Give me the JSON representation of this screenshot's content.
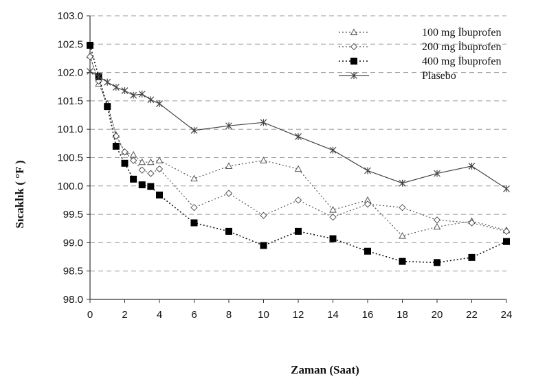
{
  "chart_data": {
    "type": "line",
    "xlabel": "Zaman (Saat)",
    "ylabel": "Sıcaklık ( °F )",
    "xlim": [
      0,
      24
    ],
    "ylim": [
      98.0,
      103.0
    ],
    "x_ticks": [
      "0",
      "2",
      "4",
      "6",
      "8",
      "10",
      "12",
      "14",
      "16",
      "18",
      "20",
      "22",
      "24"
    ],
    "y_ticks": [
      "98.0",
      "98.5",
      "99.0",
      "99.5",
      "100.0",
      "100.5",
      "101.0",
      "101.5",
      "102.0",
      "102.5",
      "103.0"
    ],
    "grid": "horizontal dashed",
    "legend_position": "top-right",
    "series": [
      {
        "name": "100 mg İbuprofen",
        "marker": "triangle",
        "line": "dotted",
        "color": "#555555",
        "x": [
          0,
          0.5,
          1,
          1.5,
          2,
          2.5,
          3,
          3.5,
          4,
          6,
          8,
          10,
          12,
          14,
          16,
          18,
          20,
          22,
          24
        ],
        "values": [
          102.3,
          101.8,
          101.45,
          100.9,
          100.6,
          100.55,
          100.42,
          100.42,
          100.45,
          100.13,
          100.35,
          100.45,
          100.3,
          99.58,
          99.75,
          99.12,
          99.28,
          99.38,
          99.22
        ]
      },
      {
        "name": "200 mg İbuprofen",
        "marker": "diamond",
        "line": "dotted",
        "color": "#555555",
        "x": [
          0,
          0.5,
          1,
          1.5,
          2,
          2.5,
          3,
          3.5,
          4,
          6,
          8,
          10,
          12,
          14,
          16,
          18,
          20,
          22,
          24
        ],
        "values": [
          102.28,
          101.85,
          101.4,
          100.88,
          100.6,
          100.45,
          100.28,
          100.22,
          100.3,
          99.62,
          99.87,
          99.48,
          99.75,
          99.45,
          99.68,
          99.62,
          99.4,
          99.35,
          99.2
        ]
      },
      {
        "name": "400 mg İbuprofen",
        "marker": "square",
        "line": "dotted",
        "color": "#111111",
        "x": [
          0,
          0.5,
          1,
          1.5,
          2,
          2.5,
          3,
          3.5,
          4,
          6,
          8,
          10,
          12,
          14,
          16,
          18,
          20,
          22,
          24
        ],
        "values": [
          102.48,
          101.93,
          101.4,
          100.7,
          100.4,
          100.12,
          100.02,
          99.99,
          99.84,
          99.35,
          99.2,
          98.95,
          99.2,
          99.07,
          98.85,
          98.67,
          98.65,
          98.74,
          99.02
        ]
      },
      {
        "name": "Plasebo",
        "marker": "star",
        "line": "solid",
        "color": "#444444",
        "x": [
          0,
          0.5,
          1,
          1.5,
          2,
          2.5,
          3,
          3.5,
          4,
          6,
          8,
          10,
          12,
          14,
          16,
          18,
          20,
          22,
          24
        ],
        "values": [
          102.02,
          101.93,
          101.83,
          101.74,
          101.68,
          101.6,
          101.62,
          101.52,
          101.45,
          100.98,
          101.06,
          101.12,
          100.87,
          100.63,
          100.27,
          100.05,
          100.22,
          100.35,
          99.95
        ]
      }
    ]
  }
}
